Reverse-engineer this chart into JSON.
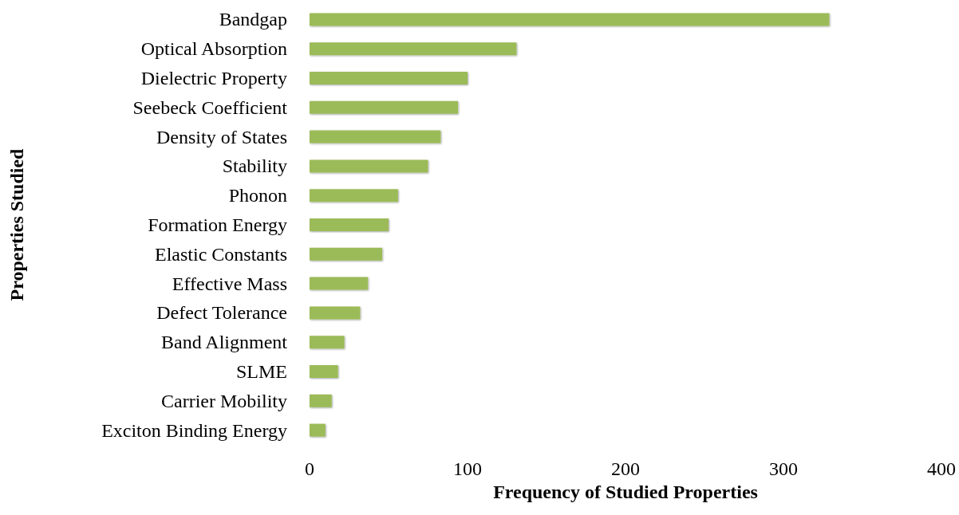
{
  "chart_data": {
    "type": "bar",
    "orientation": "horizontal",
    "xlabel": "Frequency of Studied Properties",
    "ylabel": "Properties Studied",
    "categories": [
      "Bandgap",
      "Optical Absorption",
      "Dielectric Property",
      "Seebeck Coefficient",
      "Density of States",
      "Stability",
      "Phonon",
      "Formation Energy",
      "Elastic Constants",
      "Effective Mass",
      "Defect Tolerance",
      "Band Alignment",
      "SLME",
      "Carrier Mobility",
      "Exciton Binding Energy"
    ],
    "values": [
      329,
      131,
      100,
      94,
      83,
      75,
      56,
      50,
      46,
      37,
      32,
      22,
      18,
      14,
      10
    ],
    "color": "#9bbb59",
    "xlim": [
      0,
      400
    ],
    "xticks": [
      0,
      100,
      200,
      300,
      400
    ],
    "grid": false
  }
}
